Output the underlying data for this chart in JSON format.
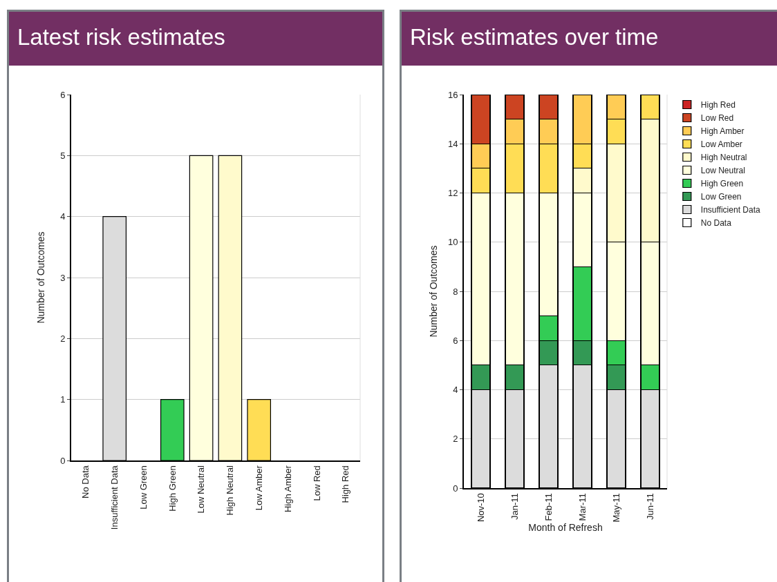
{
  "chart_data": [
    {
      "type": "bar",
      "title": "Latest risk estimates",
      "ylabel": "Number of Outcomes",
      "categories": [
        "No Data",
        "Insufficient Data",
        "Low Green",
        "High Green",
        "Low Neutral",
        "High Neutral",
        "Low Amber",
        "High Amber",
        "Low Red",
        "High Red"
      ],
      "values": [
        0,
        4,
        0,
        1,
        5,
        5,
        1,
        0,
        0,
        0
      ],
      "colors": [
        "#ffffff",
        "#dcdcdc",
        "#339955",
        "#33cc55",
        "#ffffdd",
        "#fffacc",
        "#ffdd55",
        "#ffcc55",
        "#cc4422",
        "#cc2222"
      ],
      "ylim": [
        0,
        6
      ],
      "yticks": [
        0,
        1,
        2,
        3,
        4,
        5,
        6
      ],
      "grid": "y"
    },
    {
      "type": "bar",
      "title": "Risk estimates over time",
      "ylabel": "Number of Outcomes",
      "xlabel": "Month of Refresh",
      "stacked": true,
      "legend": "right",
      "categories": [
        "Nov-10",
        "Jan-11",
        "Feb-11",
        "Mar-11",
        "May-11",
        "Jun-11"
      ],
      "series": [
        {
          "name": "No Data",
          "color": "#ffffff",
          "values": [
            0,
            0,
            0,
            0,
            0,
            0
          ]
        },
        {
          "name": "Insufficient Data",
          "color": "#dcdcdc",
          "values": [
            4,
            4,
            5,
            5,
            4,
            4
          ]
        },
        {
          "name": "Low Green",
          "color": "#339955",
          "values": [
            1,
            1,
            1,
            1,
            1,
            0
          ]
        },
        {
          "name": "High Green",
          "color": "#33cc55",
          "values": [
            0,
            0,
            1,
            3,
            1,
            1
          ]
        },
        {
          "name": "Low Neutral",
          "color": "#ffffdd",
          "values": [
            7,
            7,
            5,
            3,
            4,
            5
          ]
        },
        {
          "name": "High Neutral",
          "color": "#fffacc",
          "values": [
            0,
            0,
            0,
            1,
            4,
            5
          ]
        },
        {
          "name": "Low Amber",
          "color": "#ffdd55",
          "values": [
            1,
            2,
            2,
            1,
            1,
            1
          ]
        },
        {
          "name": "High Amber",
          "color": "#ffcc55",
          "values": [
            1,
            1,
            1,
            2,
            1,
            0
          ]
        },
        {
          "name": "Low Red",
          "color": "#cc4422",
          "values": [
            2,
            1,
            1,
            0,
            0,
            0
          ]
        },
        {
          "name": "High Red",
          "color": "#cc2222",
          "values": [
            0,
            0,
            0,
            0,
            0,
            0
          ]
        }
      ],
      "ylim": [
        0,
        16
      ],
      "yticks": [
        0,
        2,
        4,
        6,
        8,
        10,
        12,
        14,
        16
      ],
      "grid": "y"
    }
  ]
}
